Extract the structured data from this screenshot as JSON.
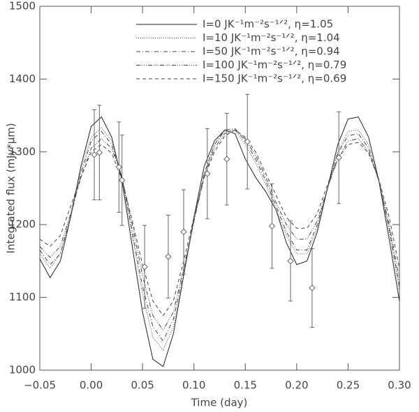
{
  "chart_data": {
    "type": "line",
    "xlabel": "Time (day)",
    "ylabel": "Integrated flux (mJy*μm)",
    "xlim": [
      -0.05,
      0.3
    ],
    "ylim": [
      1000,
      1500
    ],
    "xticks": [
      {
        "value": -0.05,
        "label": "−0.05"
      },
      {
        "value": 0,
        "label": "0.00"
      },
      {
        "value": 0.05,
        "label": "0.05"
      },
      {
        "value": 0.1,
        "label": "0.10"
      },
      {
        "value": 0.15,
        "label": "0.15"
      },
      {
        "value": 0.2,
        "label": "0.20"
      },
      {
        "value": 0.25,
        "label": "0.25"
      },
      {
        "value": 0.3,
        "label": "0.30"
      }
    ],
    "yticks": [
      1000,
      1100,
      1200,
      1300,
      1400,
      1500
    ],
    "x": [
      -0.05,
      -0.04,
      -0.03,
      -0.02,
      -0.01,
      0,
      0.01,
      0.02,
      0.03,
      0.04,
      0.05,
      0.06,
      0.07,
      0.08,
      0.09,
      0.1,
      0.11,
      0.12,
      0.13,
      0.14,
      0.15,
      0.16,
      0.17,
      0.18,
      0.19,
      0.2,
      0.21,
      0.22,
      0.23,
      0.24,
      0.25,
      0.26,
      0.27,
      0.28,
      0.29,
      0.3
    ],
    "series": [
      {
        "name": "I=0 JK⁻¹m⁻²s⁻¹ᐟ², η=1.05",
        "color": "#222",
        "dash": "none",
        "values": [
          1153,
          1127,
          1150,
          1210,
          1280,
          1335,
          1348,
          1320,
          1260,
          1170,
          1080,
          1015,
          1005,
          1050,
          1130,
          1210,
          1280,
          1315,
          1330,
          1325,
          1290,
          1265,
          1245,
          1220,
          1175,
          1145,
          1150,
          1190,
          1250,
          1310,
          1345,
          1348,
          1320,
          1260,
          1180,
          1095
        ]
      },
      {
        "name": "I=10 JK⁻¹m⁻²s⁻¹ᐟ², η=1.04",
        "color": "#444",
        "dash": "1,2",
        "values": [
          1160,
          1140,
          1160,
          1215,
          1275,
          1320,
          1333,
          1315,
          1265,
          1185,
          1105,
          1045,
          1028,
          1060,
          1130,
          1205,
          1270,
          1310,
          1328,
          1330,
          1310,
          1285,
          1255,
          1220,
          1185,
          1160,
          1160,
          1195,
          1250,
          1300,
          1328,
          1330,
          1310,
          1260,
          1190,
          1110
        ]
      },
      {
        "name": "I=50 JK⁻¹m⁻²s⁻¹ᐟ², η=0.94",
        "color": "#444",
        "dash": "6,3,1,3",
        "values": [
          1165,
          1145,
          1160,
          1210,
          1270,
          1315,
          1328,
          1310,
          1265,
          1190,
          1115,
          1060,
          1040,
          1070,
          1135,
          1205,
          1270,
          1310,
          1330,
          1332,
          1315,
          1290,
          1260,
          1225,
          1190,
          1165,
          1165,
          1200,
          1250,
          1298,
          1322,
          1325,
          1305,
          1260,
          1195,
          1115
        ]
      },
      {
        "name": "I=100 JK⁻¹m⁻²s⁻¹ᐟ², η=0.79",
        "color": "#444",
        "dash": "6,2,1,2,1,2,1,2",
        "values": [
          1170,
          1155,
          1170,
          1215,
          1265,
          1305,
          1318,
          1305,
          1265,
          1200,
          1130,
          1075,
          1055,
          1080,
          1140,
          1205,
          1265,
          1305,
          1325,
          1330,
          1318,
          1295,
          1265,
          1230,
          1200,
          1180,
          1180,
          1205,
          1250,
          1290,
          1315,
          1318,
          1300,
          1260,
          1200,
          1125
        ]
      },
      {
        "name": "I=150 JK⁻¹m⁻²s⁻¹ᐟ², η=0.69",
        "color": "#444",
        "dash": "5,4",
        "values": [
          1180,
          1170,
          1185,
          1225,
          1265,
          1300,
          1310,
          1298,
          1262,
          1205,
          1145,
          1095,
          1075,
          1095,
          1150,
          1210,
          1265,
          1300,
          1322,
          1330,
          1320,
          1300,
          1270,
          1240,
          1210,
          1195,
          1195,
          1215,
          1255,
          1290,
          1310,
          1313,
          1298,
          1262,
          1210,
          1140
        ]
      }
    ],
    "observations": {
      "color": "#666",
      "x": [
        0.003,
        0.008,
        0.027,
        0.03,
        0.052,
        0.075,
        0.09,
        0.113,
        0.132,
        0.152,
        0.176,
        0.194,
        0.215,
        0.241
      ],
      "y": [
        1296,
        1299,
        1279,
        1261,
        1142,
        1156,
        1190,
        1270,
        1290,
        1314,
        1198,
        1150,
        1113,
        1292
      ],
      "err": [
        62,
        65,
        62,
        62,
        57,
        57,
        58,
        62,
        63,
        65,
        58,
        55,
        54,
        63
      ]
    }
  }
}
